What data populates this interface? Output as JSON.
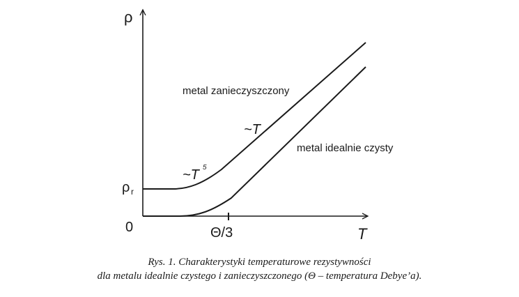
{
  "axes": {
    "y_label": "ρ",
    "x_label": "T",
    "origin_label": "0",
    "rho_r_label": "ρ",
    "rho_r_subscript": "r",
    "theta_tick_label": "Θ/3"
  },
  "curves": {
    "impure_label": "metal zanieczyszczony",
    "pure_label": "metal idealnie czysty",
    "linear_label": "~T",
    "t5_label": "~T",
    "t5_exponent": "5"
  },
  "caption": {
    "line1": "Rys. 1. Charakterystyki temperaturowe rezystywności",
    "line2": "dla metalu idealnie czystego i zanieczyszczonego (Θ – temperatura Debye’a)."
  },
  "colors": {
    "ink": "#1a1a1a"
  }
}
